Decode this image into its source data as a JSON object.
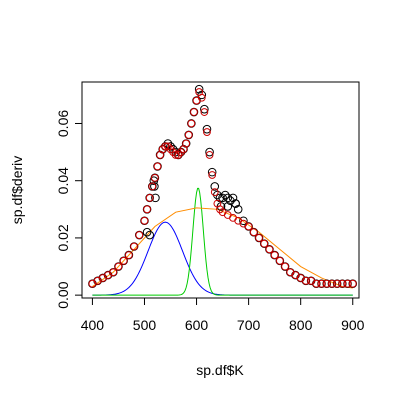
{
  "chart_data": {
    "type": "scatter",
    "title": "",
    "xlabel": "sp.df$K",
    "ylabel": "sp.df$deriv",
    "xlim": [
      380,
      912
    ],
    "ylim": [
      -0.001,
      0.0745
    ],
    "x_ticks": [
      400,
      500,
      600,
      700,
      800,
      900
    ],
    "x_tick_labels": [
      "400",
      "500",
      "600",
      "700",
      "800",
      "900"
    ],
    "y_ticks": [
      0.0,
      0.02,
      0.04,
      0.06
    ],
    "y_tick_labels": [
      "0.00",
      "0.02",
      "0.04",
      "0.06"
    ],
    "grid": false,
    "legend": "none",
    "observed": {
      "marker": "open-circle",
      "color": "#000000",
      "points": [
        [
          400,
          0.004
        ],
        [
          410,
          0.005
        ],
        [
          420,
          0.006
        ],
        [
          430,
          0.007
        ],
        [
          440,
          0.008
        ],
        [
          450,
          0.01
        ],
        [
          460,
          0.012
        ],
        [
          470,
          0.014
        ],
        [
          480,
          0.017
        ],
        [
          490,
          0.021
        ],
        [
          500,
          0.026
        ],
        [
          505,
          0.03
        ],
        [
          510,
          0.034
        ],
        [
          515,
          0.038
        ],
        [
          520,
          0.041
        ],
        [
          525,
          0.045
        ],
        [
          530,
          0.049
        ],
        [
          535,
          0.051
        ],
        [
          540,
          0.052
        ],
        [
          545,
          0.053
        ],
        [
          550,
          0.052
        ],
        [
          555,
          0.051
        ],
        [
          560,
          0.05
        ],
        [
          565,
          0.049
        ],
        [
          570,
          0.05
        ],
        [
          575,
          0.051
        ],
        [
          580,
          0.053
        ],
        [
          585,
          0.056
        ],
        [
          590,
          0.06
        ],
        [
          595,
          0.064
        ],
        [
          600,
          0.068
        ],
        [
          605,
          0.072
        ],
        [
          610,
          0.07
        ],
        [
          615,
          0.065
        ],
        [
          620,
          0.058
        ],
        [
          625,
          0.05
        ],
        [
          630,
          0.043
        ],
        [
          635,
          0.038
        ],
        [
          640,
          0.035
        ],
        [
          645,
          0.034
        ],
        [
          650,
          0.034
        ],
        [
          655,
          0.035
        ],
        [
          660,
          0.034
        ],
        [
          665,
          0.033
        ],
        [
          670,
          0.034
        ],
        [
          675,
          0.032
        ],
        [
          680,
          0.03
        ],
        [
          690,
          0.026
        ],
        [
          700,
          0.024
        ],
        [
          710,
          0.022
        ],
        [
          720,
          0.02
        ],
        [
          730,
          0.018
        ],
        [
          740,
          0.016
        ],
        [
          750,
          0.014
        ],
        [
          760,
          0.012
        ],
        [
          770,
          0.01
        ],
        [
          780,
          0.008
        ],
        [
          790,
          0.007
        ],
        [
          800,
          0.006
        ],
        [
          810,
          0.005
        ],
        [
          820,
          0.005
        ],
        [
          830,
          0.004
        ],
        [
          840,
          0.004
        ],
        [
          850,
          0.004
        ],
        [
          860,
          0.004
        ],
        [
          870,
          0.004
        ],
        [
          880,
          0.004
        ],
        [
          890,
          0.004
        ],
        [
          900,
          0.004
        ],
        [
          518,
          0.04
        ],
        [
          519,
          0.038
        ],
        [
          521,
          0.034
        ],
        [
          505,
          0.022
        ],
        [
          510,
          0.021
        ],
        [
          647,
          0.031
        ],
        [
          660,
          0.031
        ],
        [
          675,
          0.032
        ]
      ]
    },
    "fitted": {
      "marker": "open-circle",
      "color": "#cc0000",
      "x": [
        400,
        410,
        420,
        430,
        440,
        450,
        460,
        470,
        480,
        490,
        500,
        505,
        510,
        515,
        520,
        525,
        530,
        535,
        540,
        545,
        550,
        555,
        560,
        565,
        570,
        575,
        580,
        585,
        590,
        595,
        600,
        605,
        610,
        615,
        620,
        625,
        630,
        635,
        640,
        645,
        650,
        660,
        670,
        680,
        690,
        700,
        710,
        720,
        730,
        740,
        750,
        760,
        770,
        780,
        790,
        800,
        810,
        820,
        830,
        840,
        850,
        860,
        870,
        880,
        890,
        900
      ],
      "y": [
        0.004,
        0.005,
        0.006,
        0.007,
        0.008,
        0.01,
        0.012,
        0.014,
        0.017,
        0.021,
        0.026,
        0.03,
        0.034,
        0.038,
        0.041,
        0.045,
        0.049,
        0.051,
        0.052,
        0.052,
        0.051,
        0.05,
        0.049,
        0.049,
        0.05,
        0.051,
        0.053,
        0.056,
        0.06,
        0.064,
        0.068,
        0.071,
        0.069,
        0.064,
        0.057,
        0.049,
        0.042,
        0.036,
        0.032,
        0.03,
        0.029,
        0.028,
        0.027,
        0.026,
        0.025,
        0.024,
        0.022,
        0.02,
        0.018,
        0.016,
        0.014,
        0.012,
        0.01,
        0.008,
        0.007,
        0.006,
        0.005,
        0.005,
        0.004,
        0.004,
        0.004,
        0.004,
        0.004,
        0.004,
        0.004,
        0.004
      ]
    },
    "components": [
      {
        "color": "#0000ff",
        "kind": "gaussian",
        "center": 540,
        "sd": 33,
        "height": 0.0255
      },
      {
        "color": "#00cc00",
        "kind": "gaussian",
        "center": 603,
        "sd": 10,
        "height": 0.0375
      },
      {
        "color": "#ff8c00",
        "kind": "broad",
        "points": [
          [
            400,
            0.003
          ],
          [
            440,
            0.008
          ],
          [
            480,
            0.016
          ],
          [
            520,
            0.024
          ],
          [
            560,
            0.029
          ],
          [
            600,
            0.0305
          ],
          [
            640,
            0.03
          ],
          [
            680,
            0.027
          ],
          [
            720,
            0.022
          ],
          [
            760,
            0.016
          ],
          [
            800,
            0.01
          ],
          [
            840,
            0.006
          ],
          [
            880,
            0.003
          ],
          [
            900,
            0.0025
          ]
        ]
      }
    ]
  }
}
